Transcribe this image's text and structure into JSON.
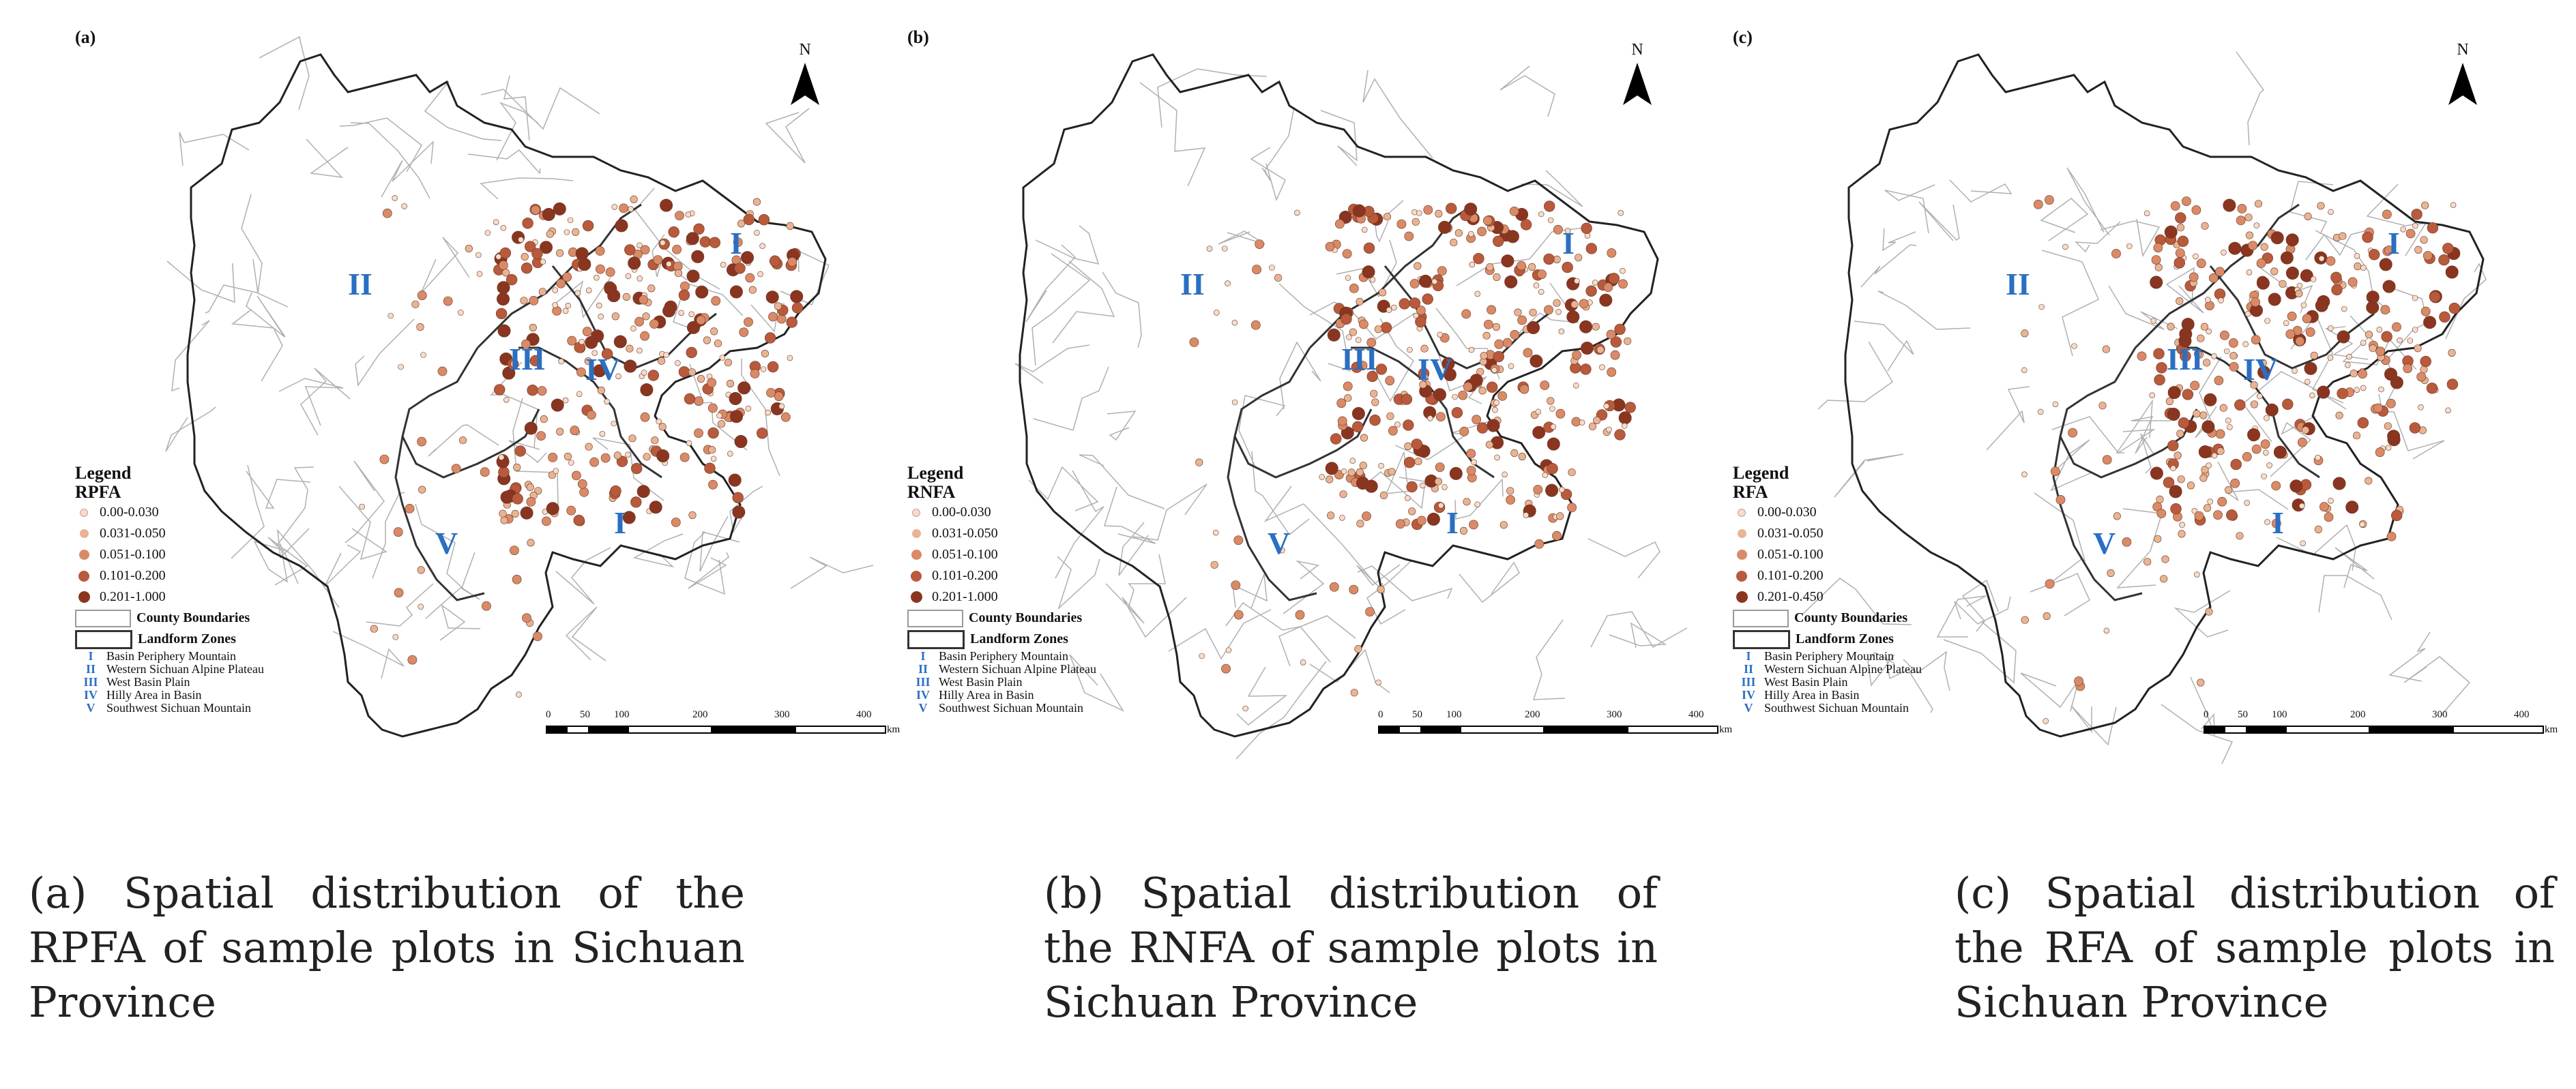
{
  "panels": [
    {
      "label": "(a)",
      "legend_title": "Legend",
      "variable": "RPFA",
      "classes": [
        "0.00-0.030",
        "0.031-0.050",
        "0.051-0.100",
        "0.101-0.200",
        "0.201-1.000"
      ],
      "caption": "(a) Spatial distribution of the RPFA of sample plots in Sichuan Province"
    },
    {
      "label": "(b)",
      "legend_title": "Legend",
      "variable": "RNFA",
      "classes": [
        "0.00-0.030",
        "0.031-0.050",
        "0.051-0.100",
        "0.101-0.200",
        "0.201-1.000"
      ],
      "caption": "(b) Spatial distribution of the RNFA of sample plots in Sichuan Province"
    },
    {
      "label": "(c)",
      "legend_title": "Legend",
      "variable": "RFA",
      "classes": [
        "0.00-0.030",
        "0.031-0.050",
        "0.051-0.100",
        "0.101-0.200",
        "0.201-0.450"
      ],
      "caption": "(c) Spatial distribution of the RFA of sample plots in Sichuan Province"
    }
  ],
  "legend_common": {
    "county_boundaries": "County Boundaries",
    "landform_zones": "Landform Zones",
    "zones": [
      {
        "num": "I",
        "name": "Basin Periphery Mountain"
      },
      {
        "num": "II",
        "name": "Western Sichuan Alpine Plateau"
      },
      {
        "num": "III",
        "name": "West Basin Plain"
      },
      {
        "num": "IV",
        "name": "Hilly Area in Basin"
      },
      {
        "num": "V",
        "name": "Southwest Sichuan Mountain"
      }
    ]
  },
  "north_arrow": "N",
  "scale": {
    "ticks": [
      "0",
      "50",
      "100",
      "200",
      "300",
      "400"
    ],
    "unit": "km"
  },
  "colors": {
    "class_colors": [
      "#f6dcc9",
      "#e9b493",
      "#d98a66",
      "#b85a3b",
      "#8a3520"
    ],
    "zone_label": "#2b6fc2",
    "county_line": "#b0b0b0",
    "zone_line": "#333333"
  }
}
